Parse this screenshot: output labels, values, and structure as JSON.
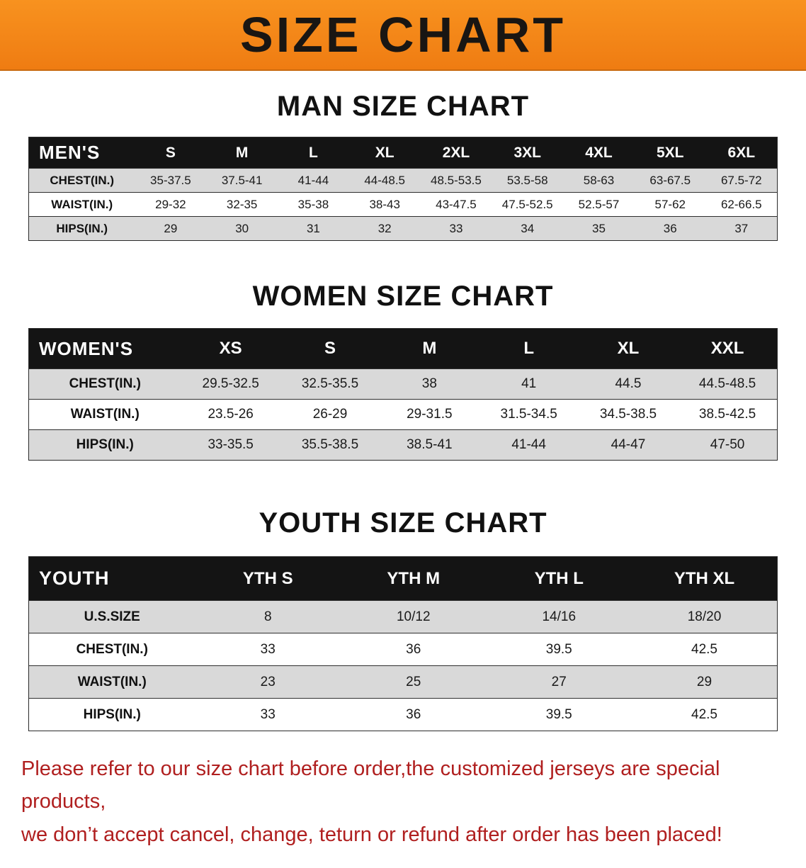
{
  "banner": {
    "title": "SIZE CHART",
    "bg_color": "#f5831d",
    "text_color": "#191613"
  },
  "styles": {
    "table_header_bg": "#141414",
    "table_header_text": "#ffffff",
    "row_stripe_color": "#d9d9d9",
    "note_color": "#b01f1f"
  },
  "chart_data": [
    {
      "type": "table",
      "title": "MAN SIZE CHART",
      "corner_label": "MEN'S",
      "columns": [
        "S",
        "M",
        "L",
        "XL",
        "2XL",
        "3XL",
        "4XL",
        "5XL",
        "6XL"
      ],
      "rows": [
        {
          "label": "CHEST(IN.)",
          "values": [
            "35-37.5",
            "37.5-41",
            "41-44",
            "44-48.5",
            "48.5-53.5",
            "53.5-58",
            "58-63",
            "63-67.5",
            "67.5-72"
          ]
        },
        {
          "label": "WAIST(IN.)",
          "values": [
            "29-32",
            "32-35",
            "35-38",
            "38-43",
            "43-47.5",
            "47.5-52.5",
            "52.5-57",
            "57-62",
            "62-66.5"
          ]
        },
        {
          "label": "HIPS(IN.)",
          "values": [
            "29",
            "30",
            "31",
            "32",
            "33",
            "34",
            "35",
            "36",
            "37"
          ]
        }
      ]
    },
    {
      "type": "table",
      "title": "WOMEN SIZE CHART",
      "corner_label": "WOMEN'S",
      "columns": [
        "XS",
        "S",
        "M",
        "L",
        "XL",
        "XXL"
      ],
      "rows": [
        {
          "label": "CHEST(IN.)",
          "values": [
            "29.5-32.5",
            "32.5-35.5",
            "38",
            "41",
            "44.5",
            "44.5-48.5"
          ]
        },
        {
          "label": "WAIST(IN.)",
          "values": [
            "23.5-26",
            "26-29",
            "29-31.5",
            "31.5-34.5",
            "34.5-38.5",
            "38.5-42.5"
          ]
        },
        {
          "label": "HIPS(IN.)",
          "values": [
            "33-35.5",
            "35.5-38.5",
            "38.5-41",
            "41-44",
            "44-47",
            "47-50"
          ]
        }
      ]
    },
    {
      "type": "table",
      "title": "YOUTH SIZE CHART",
      "corner_label": "YOUTH",
      "columns": [
        "YTH S",
        "YTH M",
        "YTH L",
        "YTH XL"
      ],
      "rows": [
        {
          "label": "U.S.SIZE",
          "values": [
            "8",
            "10/12",
            "14/16",
            "18/20"
          ]
        },
        {
          "label": "CHEST(IN.)",
          "values": [
            "33",
            "36",
            "39.5",
            "42.5"
          ]
        },
        {
          "label": "WAIST(IN.)",
          "values": [
            "23",
            "25",
            "27",
            "29"
          ]
        },
        {
          "label": "HIPS(IN.)",
          "values": [
            "33",
            "36",
            "39.5",
            "42.5"
          ]
        }
      ]
    }
  ],
  "footer_note": {
    "lines": [
      "Please refer to our size chart before order,the customized jerseys are special products,",
      "we don’t accept cancel, change, teturn or refund after order has been placed!"
    ]
  }
}
